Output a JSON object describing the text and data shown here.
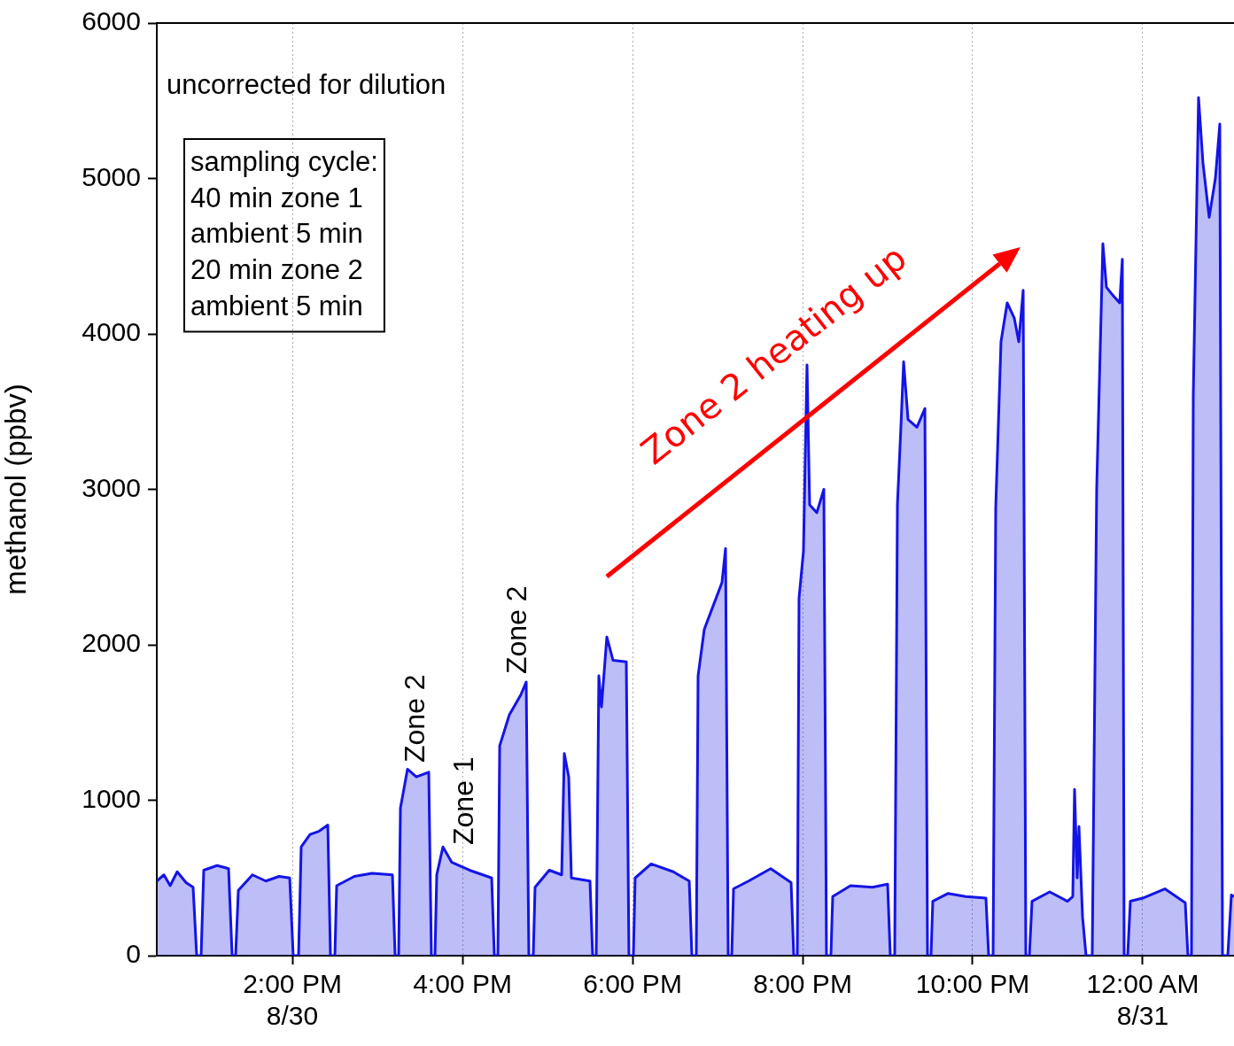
{
  "chart_data": {
    "type": "area",
    "ylabel": "methanol (ppbv)",
    "xlim": [
      12.406,
      25.073
    ],
    "ylim": [
      0,
      6000
    ],
    "xticks": [
      {
        "value": 14,
        "label": "2:00 PM\n8/30"
      },
      {
        "value": 16,
        "label": "4:00 PM"
      },
      {
        "value": 18,
        "label": "6:00 PM"
      },
      {
        "value": 20,
        "label": "8:00 PM"
      },
      {
        "value": 22,
        "label": "10:00 PM"
      },
      {
        "value": 24,
        "label": "12:00 AM\n8/31"
      }
    ],
    "yticks": [
      0,
      1000,
      2000,
      3000,
      4000,
      5000,
      6000
    ],
    "grid": "x",
    "legend": false,
    "marker": "none",
    "line_style": "solid",
    "annotations": [
      "uncorrected for dilution",
      "sampling cycle:\n40 min zone 1\nambient 5 min\n20 min zone 2\nambient 5 min",
      "Zone 2",
      "Zone 1",
      "Zone 2",
      "Zone 2 heating up"
    ],
    "series": [
      {
        "color": "#1414e6",
        "x": [
          12.406,
          12.49,
          12.563,
          12.646,
          12.75,
          12.833,
          12.875,
          12.927,
          12.958,
          13.115,
          13.25,
          13.292,
          13.333,
          13.365,
          13.531,
          13.688,
          13.844,
          13.969,
          14.01,
          14.073,
          14.104,
          14.208,
          14.313,
          14.417,
          14.448,
          14.5,
          14.521,
          14.729,
          14.938,
          15.177,
          15.208,
          15.25,
          15.271,
          15.354,
          15.458,
          15.604,
          15.635,
          15.677,
          15.698,
          15.771,
          15.875,
          16.083,
          16.344,
          16.375,
          16.417,
          16.438,
          16.552,
          16.688,
          16.75,
          16.781,
          16.833,
          16.854,
          17.021,
          17.167,
          17.198,
          17.25,
          17.281,
          17.5,
          17.531,
          17.573,
          17.604,
          17.635,
          17.698,
          17.771,
          17.927,
          17.958,
          18.01,
          18.031,
          18.219,
          18.479,
          18.667,
          18.698,
          18.75,
          18.771,
          18.844,
          18.948,
          19.052,
          19.094,
          19.125,
          19.167,
          19.188,
          19.365,
          19.625,
          19.865,
          19.896,
          19.938,
          19.958,
          20.01,
          20.052,
          20.083,
          20.167,
          20.25,
          20.281,
          20.333,
          20.354,
          20.563,
          20.823,
          21,
          21.031,
          21.083,
          21.115,
          21.156,
          21.188,
          21.24,
          21.344,
          21.438,
          21.469,
          21.51,
          21.531,
          21.708,
          21.917,
          22.156,
          22.188,
          22.24,
          22.271,
          22.333,
          22.406,
          22.49,
          22.542,
          22.594,
          22.625,
          22.667,
          22.698,
          22.906,
          23.115,
          23.177,
          23.198,
          23.229,
          23.25,
          23.292,
          23.333,
          23.406,
          23.458,
          23.531,
          23.573,
          23.646,
          23.729,
          23.76,
          23.781,
          23.823,
          23.854,
          24,
          24.26,
          24.5,
          24.531,
          24.573,
          24.594,
          24.656,
          24.708,
          24.781,
          24.854,
          24.906,
          24.938,
          25,
          25.042,
          25.073
        ],
        "values": [
          480,
          520,
          450,
          540,
          470,
          440,
          0,
          0,
          550,
          580,
          560,
          0,
          0,
          420,
          520,
          480,
          510,
          500,
          0,
          0,
          700,
          780,
          800,
          840,
          0,
          0,
          450,
          510,
          530,
          520,
          0,
          0,
          950,
          1200,
          1150,
          1180,
          0,
          0,
          520,
          700,
          600,
          550,
          500,
          0,
          0,
          1350,
          1550,
          1680,
          1760,
          0,
          0,
          440,
          550,
          520,
          1300,
          1150,
          500,
          480,
          0,
          0,
          1800,
          1600,
          2050,
          1900,
          1890,
          0,
          0,
          500,
          590,
          540,
          480,
          0,
          0,
          1800,
          2100,
          2250,
          2400,
          2620,
          0,
          0,
          430,
          480,
          560,
          470,
          0,
          0,
          2300,
          2600,
          3800,
          2900,
          2850,
          3000,
          0,
          0,
          380,
          450,
          440,
          460,
          0,
          0,
          2900,
          3400,
          3820,
          3450,
          3400,
          3520,
          0,
          0,
          350,
          400,
          380,
          370,
          0,
          0,
          2880,
          3950,
          4200,
          4100,
          3950,
          4280,
          0,
          0,
          350,
          410,
          350,
          380,
          1070,
          500,
          830,
          250,
          0,
          0,
          3000,
          4580,
          4300,
          4250,
          4200,
          4480,
          0,
          0,
          350,
          370,
          430,
          340,
          0,
          0,
          3600,
          5520,
          5100,
          4750,
          5000,
          5350,
          0,
          0,
          390,
          380
        ]
      }
    ]
  }
}
